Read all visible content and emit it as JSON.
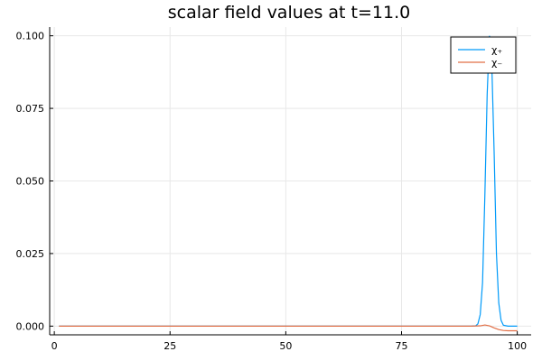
{
  "chart_data": {
    "type": "line",
    "title": "scalar field values at t=11.0",
    "xlabel": "",
    "ylabel": "",
    "xlim": [
      -1,
      103
    ],
    "ylim": [
      -0.003,
      0.103
    ],
    "xticks": [
      0,
      25,
      50,
      75,
      100
    ],
    "xtick_labels": [
      "0",
      "25",
      "50",
      "75",
      "100"
    ],
    "yticks": [
      0.0,
      0.025,
      0.05,
      0.075,
      0.1
    ],
    "ytick_labels": [
      "0.000",
      "0.025",
      "0.050",
      "0.075",
      "0.100"
    ],
    "grid": true,
    "legend_position": "top-right",
    "series": [
      {
        "name": "χ₊",
        "color": "#009af9",
        "x": [
          1,
          10,
          20,
          30,
          40,
          50,
          60,
          70,
          80,
          85,
          90,
          91,
          91.5,
          92,
          92.5,
          93,
          93.5,
          94,
          94.5,
          95,
          95.5,
          96,
          96.5,
          97,
          98,
          100
        ],
        "y": [
          0,
          0,
          0,
          0,
          0,
          0,
          0,
          0,
          0,
          0,
          0,
          0.0001,
          0.0008,
          0.004,
          0.015,
          0.045,
          0.08,
          0.1,
          0.09,
          0.06,
          0.025,
          0.008,
          0.002,
          0.0003,
          0,
          0
        ]
      },
      {
        "name": "χ₋",
        "color": "#e26f46",
        "x": [
          1,
          10,
          20,
          30,
          40,
          50,
          60,
          70,
          80,
          85,
          90,
          92,
          93,
          94,
          95,
          96,
          97,
          98,
          100
        ],
        "y": [
          0,
          0,
          0,
          0,
          0,
          0,
          0,
          0,
          0,
          0,
          0,
          0.0001,
          0.0004,
          0.0001,
          -0.0006,
          -0.0012,
          -0.0015,
          -0.0016,
          -0.0016
        ]
      }
    ]
  }
}
